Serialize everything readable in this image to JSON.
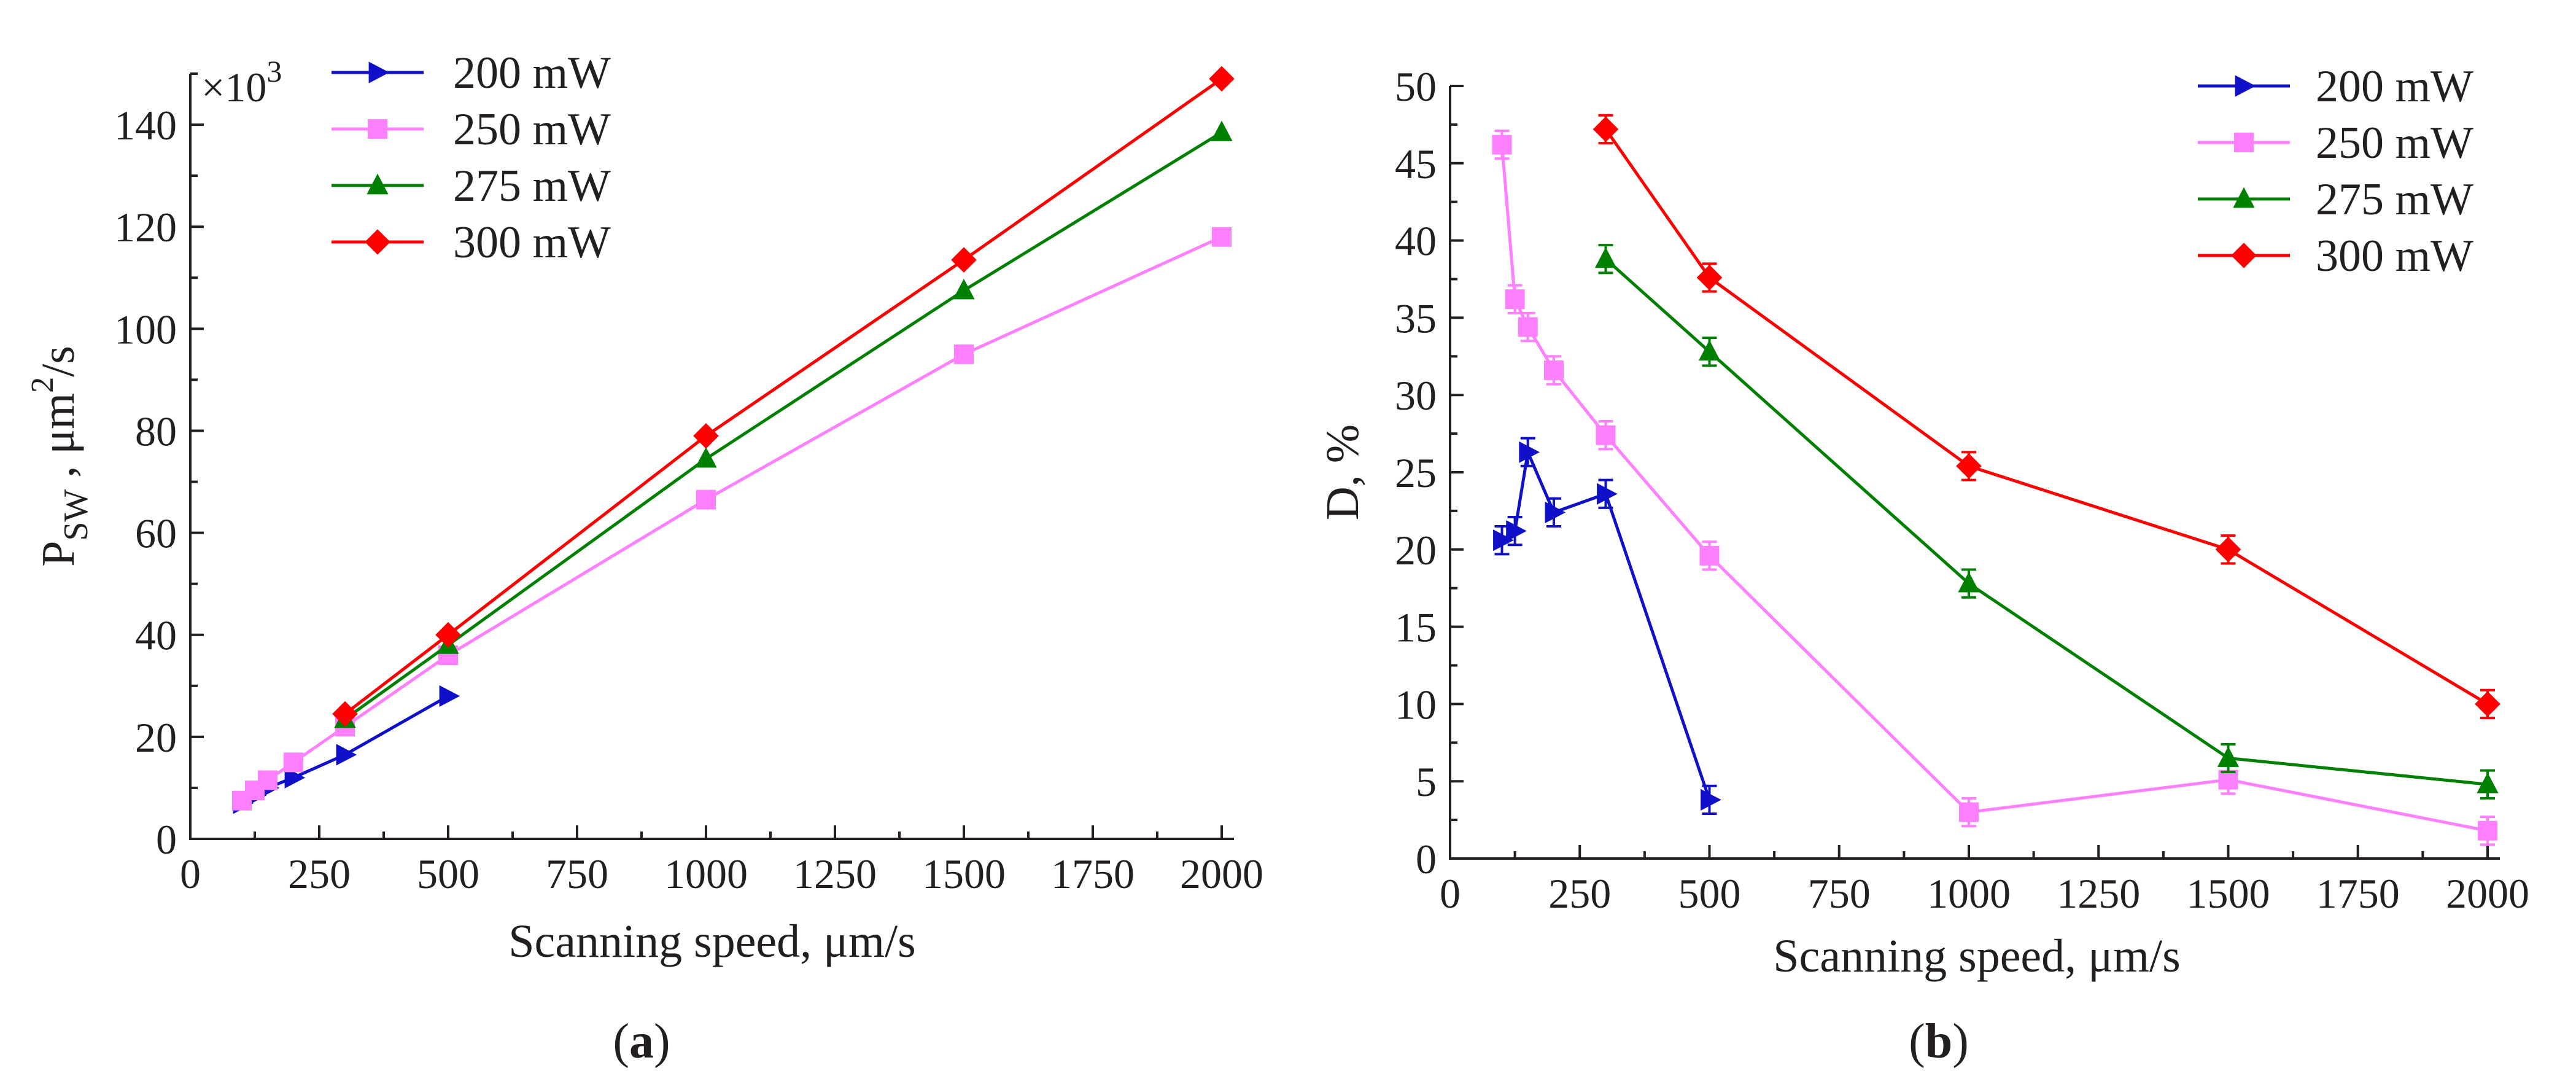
{
  "chart_data": [
    {
      "panel": "(a)",
      "panel_letter": "a",
      "type": "line",
      "xlabel": "Scanning speed, μm/s",
      "ylabel_main": "P",
      "ylabel_sub": "SW",
      "ylabel_rest": " , μm",
      "ylabel_sup": "2",
      "ylabel_tail": "/s",
      "multiplier": "×10",
      "multiplier_exp": "3",
      "xlim": [
        0,
        2000
      ],
      "ylim": [
        0,
        150
      ],
      "xticks": [
        "0",
        "250",
        "500",
        "750",
        "1000",
        "1250",
        "1500",
        "1750",
        "2000"
      ],
      "yticks": [
        "0",
        "20",
        "40",
        "60",
        "80",
        "100",
        "120",
        "140"
      ],
      "legend_position": "top-left",
      "series": [
        {
          "name": "200 mW",
          "color": "#1010c8",
          "marker": "triangle-right",
          "x": [
            100,
            125,
            150,
            200,
            300,
            500
          ],
          "y": [
            7,
            8.5,
            10,
            12,
            16.5,
            28
          ]
        },
        {
          "name": "250 mW",
          "color": "#ff80ff",
          "marker": "square",
          "x": [
            100,
            125,
            150,
            200,
            300,
            500,
            1000,
            1500,
            2000
          ],
          "y": [
            7.5,
            9.5,
            11.5,
            15,
            22,
            36,
            66.5,
            95,
            118
          ]
        },
        {
          "name": "275 mW",
          "color": "#008000",
          "marker": "triangle-up",
          "x": [
            300,
            500,
            1000,
            1500,
            2000
          ],
          "y": [
            23.5,
            38,
            74.5,
            107.5,
            138.5
          ]
        },
        {
          "name": "300 mW",
          "color": "#ff0000",
          "marker": "diamond",
          "x": [
            300,
            500,
            1000,
            1500,
            2000
          ],
          "y": [
            24.5,
            40,
            79,
            113.5,
            149
          ]
        }
      ]
    },
    {
      "panel": "(b)",
      "panel_letter": "b",
      "type": "line",
      "xlabel": "Scanning speed, μm/s",
      "ylabel": "D, %",
      "xlim": [
        0,
        2000
      ],
      "ylim": [
        0,
        50
      ],
      "xticks": [
        "0",
        "250",
        "500",
        "750",
        "1000",
        "1250",
        "1500",
        "1750",
        "2000"
      ],
      "yticks": [
        "0",
        "5",
        "10",
        "15",
        "20",
        "25",
        "30",
        "35",
        "40",
        "45",
        "50"
      ],
      "legend_position": "top-right",
      "series": [
        {
          "name": "200 mW",
          "color": "#1010c8",
          "marker": "triangle-right",
          "x": [
            100,
            125,
            150,
            200,
            300,
            500
          ],
          "y": [
            20.6,
            21.2,
            26.3,
            22.4,
            23.6,
            3.8
          ],
          "err": [
            0.9,
            0.9,
            0.9,
            0.9,
            0.9,
            0.9
          ]
        },
        {
          "name": "250 mW",
          "color": "#ff80ff",
          "marker": "square",
          "x": [
            100,
            125,
            150,
            200,
            300,
            500,
            1000,
            1500,
            2000
          ],
          "y": [
            46.2,
            36.2,
            34.4,
            31.6,
            27.4,
            19.6,
            3.0,
            5.1,
            1.8
          ],
          "err": [
            0.9,
            0.9,
            0.9,
            0.9,
            0.9,
            0.9,
            0.9,
            0.9,
            0.9
          ]
        },
        {
          "name": "275 mW",
          "color": "#008000",
          "marker": "triangle-up",
          "x": [
            300,
            500,
            1000,
            1500,
            2000
          ],
          "y": [
            38.8,
            32.8,
            17.8,
            6.5,
            4.8
          ],
          "err": [
            0.9,
            0.9,
            0.9,
            0.9,
            0.9
          ]
        },
        {
          "name": "300 mW",
          "color": "#ff0000",
          "marker": "diamond",
          "x": [
            300,
            500,
            1000,
            1500,
            2000
          ],
          "y": [
            47.2,
            37.6,
            25.4,
            20.0,
            10.0
          ],
          "err": [
            0.9,
            0.9,
            0.9,
            0.9,
            0.9
          ]
        }
      ]
    }
  ]
}
